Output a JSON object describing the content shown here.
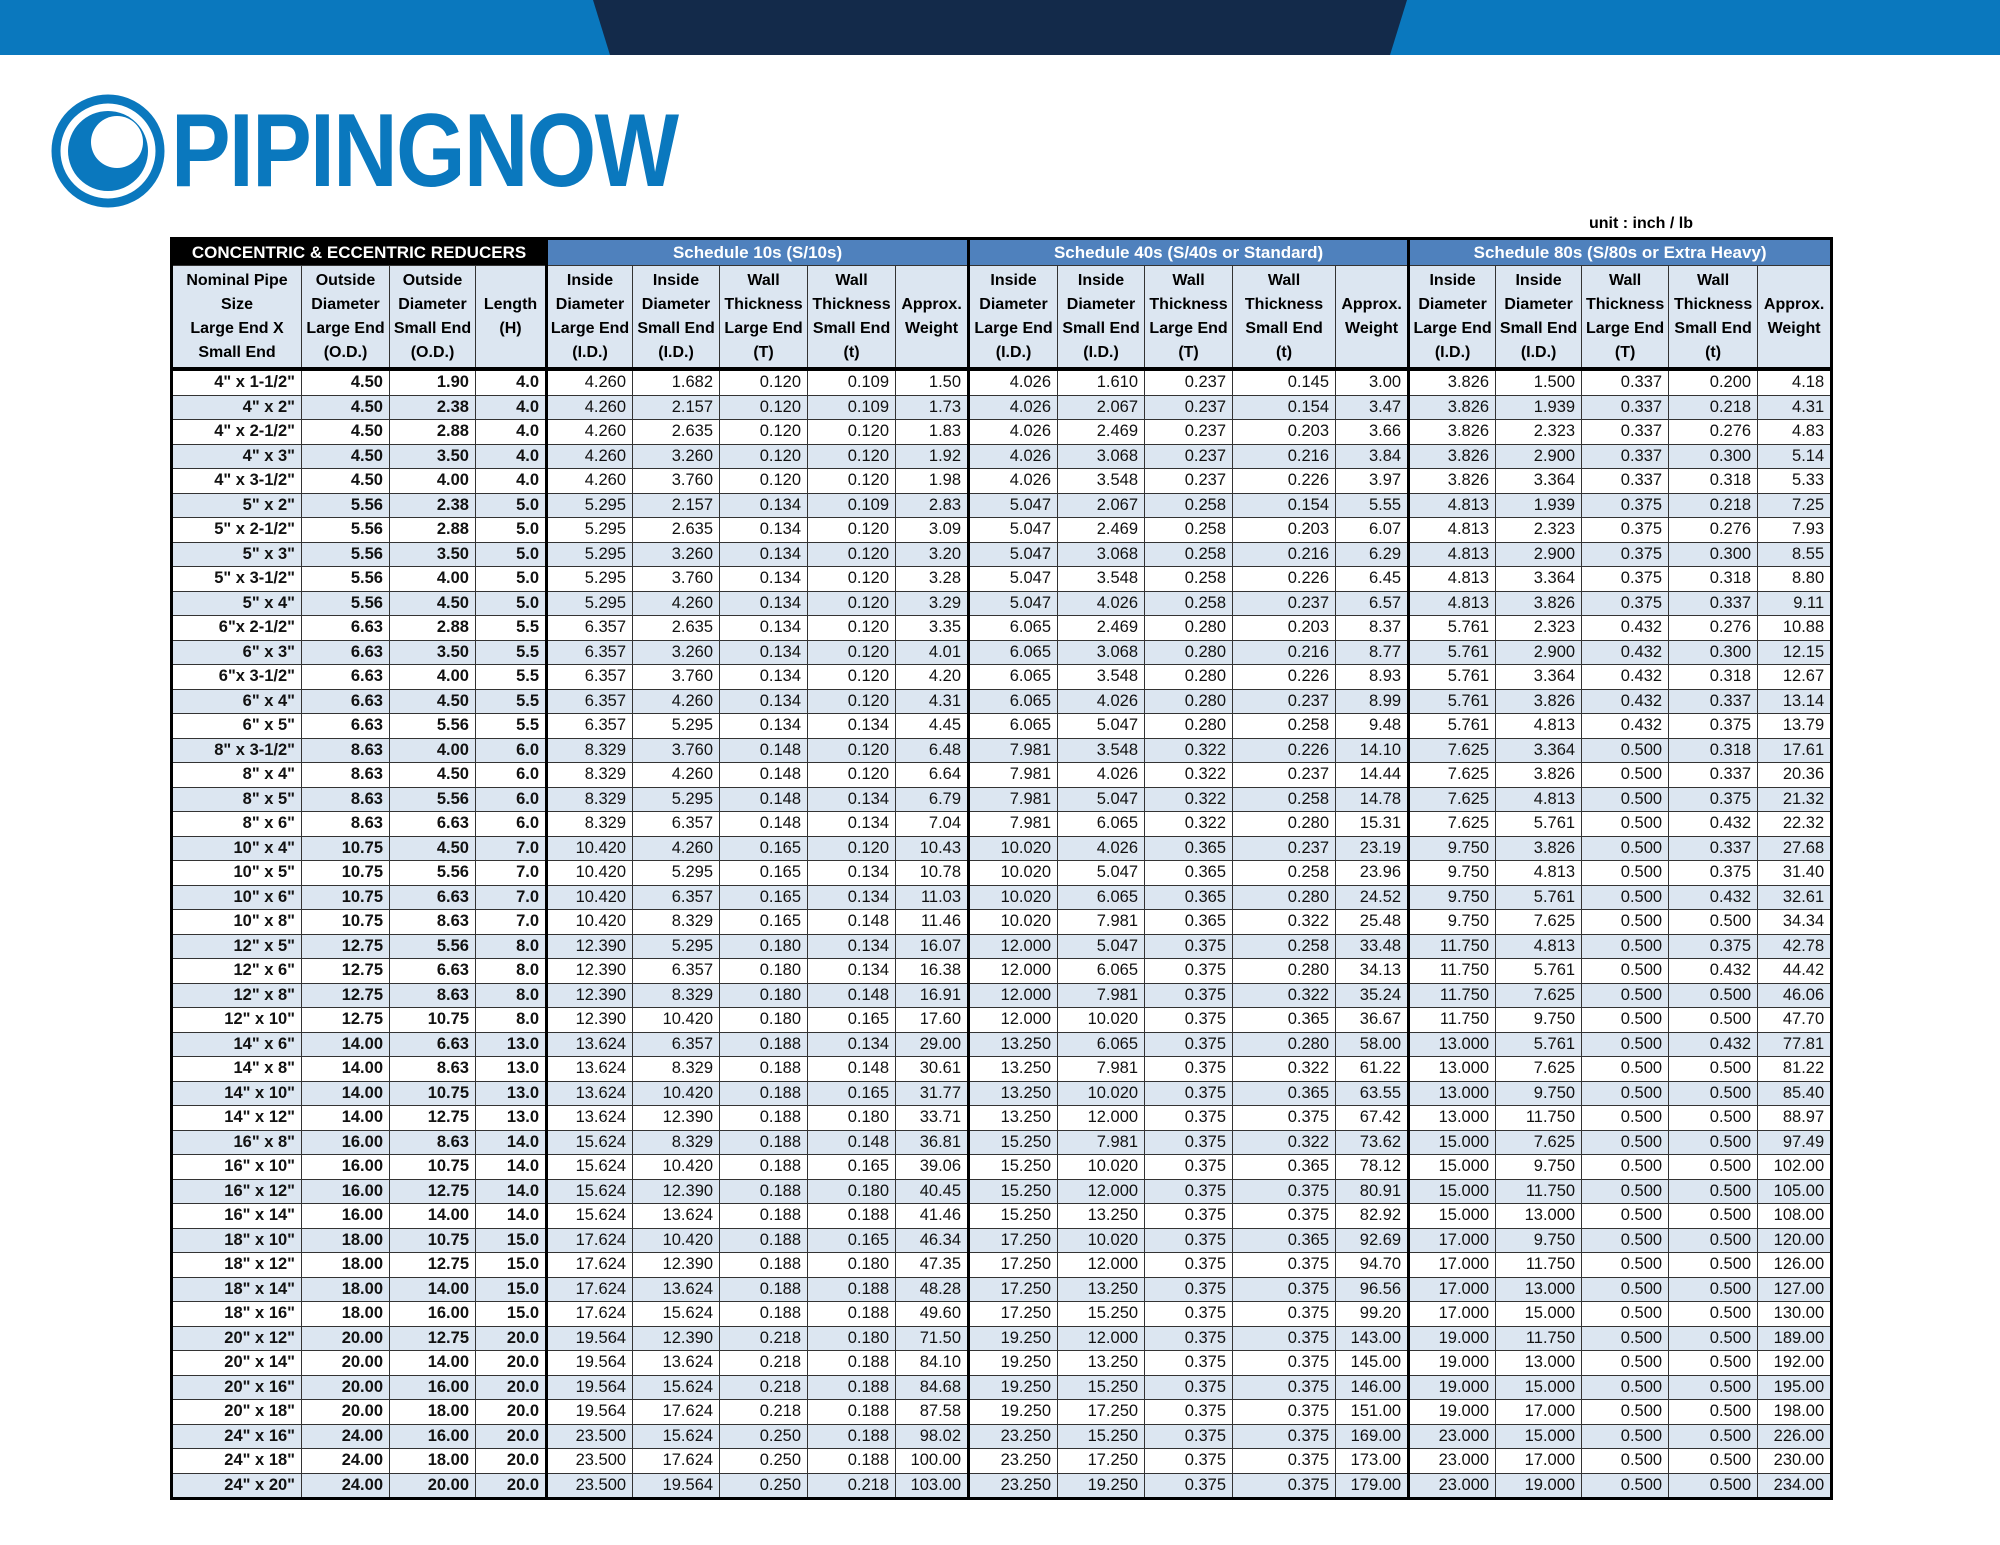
{
  "brand": {
    "name": "PIPINGNOW",
    "colors": {
      "primary": "#0a78be",
      "dark": "#132a4a",
      "header_blue": "#4f81bd",
      "row_alt": "#dce6f1"
    },
    "logo_icon": "crescent-ring-logo"
  },
  "unit_label": "unit : inch / lb",
  "table": {
    "title": "CONCENTRIC & ECCENTRIC REDUCERS",
    "groups": [
      {
        "label": "Schedule 10s    (S/10s)"
      },
      {
        "label": "Schedule 40s    (S/40s or Standard)"
      },
      {
        "label": "Schedule 80s    (S/80s or Extra Heavy)"
      }
    ],
    "columns": [
      [
        "Nominal Pipe",
        "Size",
        "Large End X",
        "Small End"
      ],
      [
        "Outside",
        "Diameter",
        "Large End",
        "(O.D.)"
      ],
      [
        "Outside",
        "Diameter",
        "Small End",
        "(O.D.)"
      ],
      [
        "Length",
        "(H)"
      ],
      [
        "Inside",
        "Diameter",
        "Large End",
        "(I.D.)"
      ],
      [
        "Inside",
        "Diameter",
        "Small End",
        "(I.D.)"
      ],
      [
        "Wall",
        "Thickness",
        "Large End",
        "(T)"
      ],
      [
        "Wall",
        "Thickness",
        "Small End",
        "(t)"
      ],
      [
        "Approx.",
        "Weight"
      ],
      [
        "Inside",
        "Diameter",
        "Large End",
        "(I.D.)"
      ],
      [
        "Inside",
        "Diameter",
        "Small End",
        "(I.D.)"
      ],
      [
        "Wall",
        "Thickness",
        "Large End",
        "(T)"
      ],
      [
        "Wall",
        "Thickness",
        "Small End",
        "(t)"
      ],
      [
        "Approx.",
        "Weight"
      ],
      [
        "Inside",
        "Diameter",
        "Large End",
        "(I.D.)"
      ],
      [
        "Inside",
        "Diameter",
        "Small End",
        "(I.D.)"
      ],
      [
        "Wall",
        "Thickness",
        "Large End",
        "(T)"
      ],
      [
        "Wall",
        "Thickness",
        "Small End",
        "(t)"
      ],
      [
        "Approx.",
        "Weight"
      ]
    ],
    "rows": [
      [
        "4\" x 1-1/2\"",
        "4.50",
        "1.90",
        "4.0",
        "4.260",
        "1.682",
        "0.120",
        "0.109",
        "1.50",
        "4.026",
        "1.610",
        "0.237",
        "0.145",
        "3.00",
        "3.826",
        "1.500",
        "0.337",
        "0.200",
        "4.18"
      ],
      [
        "4\" x 2\"",
        "4.50",
        "2.38",
        "4.0",
        "4.260",
        "2.157",
        "0.120",
        "0.109",
        "1.73",
        "4.026",
        "2.067",
        "0.237",
        "0.154",
        "3.47",
        "3.826",
        "1.939",
        "0.337",
        "0.218",
        "4.31"
      ],
      [
        "4\" x 2-1/2\"",
        "4.50",
        "2.88",
        "4.0",
        "4.260",
        "2.635",
        "0.120",
        "0.120",
        "1.83",
        "4.026",
        "2.469",
        "0.237",
        "0.203",
        "3.66",
        "3.826",
        "2.323",
        "0.337",
        "0.276",
        "4.83"
      ],
      [
        "4\" x 3\"",
        "4.50",
        "3.50",
        "4.0",
        "4.260",
        "3.260",
        "0.120",
        "0.120",
        "1.92",
        "4.026",
        "3.068",
        "0.237",
        "0.216",
        "3.84",
        "3.826",
        "2.900",
        "0.337",
        "0.300",
        "5.14"
      ],
      [
        "4\" x 3-1/2\"",
        "4.50",
        "4.00",
        "4.0",
        "4.260",
        "3.760",
        "0.120",
        "0.120",
        "1.98",
        "4.026",
        "3.548",
        "0.237",
        "0.226",
        "3.97",
        "3.826",
        "3.364",
        "0.337",
        "0.318",
        "5.33"
      ],
      [
        "5\" x 2\"",
        "5.56",
        "2.38",
        "5.0",
        "5.295",
        "2.157",
        "0.134",
        "0.109",
        "2.83",
        "5.047",
        "2.067",
        "0.258",
        "0.154",
        "5.55",
        "4.813",
        "1.939",
        "0.375",
        "0.218",
        "7.25"
      ],
      [
        "5\" x 2-1/2\"",
        "5.56",
        "2.88",
        "5.0",
        "5.295",
        "2.635",
        "0.134",
        "0.120",
        "3.09",
        "5.047",
        "2.469",
        "0.258",
        "0.203",
        "6.07",
        "4.813",
        "2.323",
        "0.375",
        "0.276",
        "7.93"
      ],
      [
        "5\" x 3\"",
        "5.56",
        "3.50",
        "5.0",
        "5.295",
        "3.260",
        "0.134",
        "0.120",
        "3.20",
        "5.047",
        "3.068",
        "0.258",
        "0.216",
        "6.29",
        "4.813",
        "2.900",
        "0.375",
        "0.300",
        "8.55"
      ],
      [
        "5\" x 3-1/2\"",
        "5.56",
        "4.00",
        "5.0",
        "5.295",
        "3.760",
        "0.134",
        "0.120",
        "3.28",
        "5.047",
        "3.548",
        "0.258",
        "0.226",
        "6.45",
        "4.813",
        "3.364",
        "0.375",
        "0.318",
        "8.80"
      ],
      [
        "5\" x 4\"",
        "5.56",
        "4.50",
        "5.0",
        "5.295",
        "4.260",
        "0.134",
        "0.120",
        "3.29",
        "5.047",
        "4.026",
        "0.258",
        "0.237",
        "6.57",
        "4.813",
        "3.826",
        "0.375",
        "0.337",
        "9.11"
      ],
      [
        "6\"x 2-1/2\"",
        "6.63",
        "2.88",
        "5.5",
        "6.357",
        "2.635",
        "0.134",
        "0.120",
        "3.35",
        "6.065",
        "2.469",
        "0.280",
        "0.203",
        "8.37",
        "5.761",
        "2.323",
        "0.432",
        "0.276",
        "10.88"
      ],
      [
        "6\" x 3\"",
        "6.63",
        "3.50",
        "5.5",
        "6.357",
        "3.260",
        "0.134",
        "0.120",
        "4.01",
        "6.065",
        "3.068",
        "0.280",
        "0.216",
        "8.77",
        "5.761",
        "2.900",
        "0.432",
        "0.300",
        "12.15"
      ],
      [
        "6\"x 3-1/2\"",
        "6.63",
        "4.00",
        "5.5",
        "6.357",
        "3.760",
        "0.134",
        "0.120",
        "4.20",
        "6.065",
        "3.548",
        "0.280",
        "0.226",
        "8.93",
        "5.761",
        "3.364",
        "0.432",
        "0.318",
        "12.67"
      ],
      [
        "6\" x 4\"",
        "6.63",
        "4.50",
        "5.5",
        "6.357",
        "4.260",
        "0.134",
        "0.120",
        "4.31",
        "6.065",
        "4.026",
        "0.280",
        "0.237",
        "8.99",
        "5.761",
        "3.826",
        "0.432",
        "0.337",
        "13.14"
      ],
      [
        "6\" x 5\"",
        "6.63",
        "5.56",
        "5.5",
        "6.357",
        "5.295",
        "0.134",
        "0.134",
        "4.45",
        "6.065",
        "5.047",
        "0.280",
        "0.258",
        "9.48",
        "5.761",
        "4.813",
        "0.432",
        "0.375",
        "13.79"
      ],
      [
        "8\" x 3-1/2\"",
        "8.63",
        "4.00",
        "6.0",
        "8.329",
        "3.760",
        "0.148",
        "0.120",
        "6.48",
        "7.981",
        "3.548",
        "0.322",
        "0.226",
        "14.10",
        "7.625",
        "3.364",
        "0.500",
        "0.318",
        "17.61"
      ],
      [
        "8\" x 4\"",
        "8.63",
        "4.50",
        "6.0",
        "8.329",
        "4.260",
        "0.148",
        "0.120",
        "6.64",
        "7.981",
        "4.026",
        "0.322",
        "0.237",
        "14.44",
        "7.625",
        "3.826",
        "0.500",
        "0.337",
        "20.36"
      ],
      [
        "8\" x 5\"",
        "8.63",
        "5.56",
        "6.0",
        "8.329",
        "5.295",
        "0.148",
        "0.134",
        "6.79",
        "7.981",
        "5.047",
        "0.322",
        "0.258",
        "14.78",
        "7.625",
        "4.813",
        "0.500",
        "0.375",
        "21.32"
      ],
      [
        "8\" x 6\"",
        "8.63",
        "6.63",
        "6.0",
        "8.329",
        "6.357",
        "0.148",
        "0.134",
        "7.04",
        "7.981",
        "6.065",
        "0.322",
        "0.280",
        "15.31",
        "7.625",
        "5.761",
        "0.500",
        "0.432",
        "22.32"
      ],
      [
        "10\" x 4\"",
        "10.75",
        "4.50",
        "7.0",
        "10.420",
        "4.260",
        "0.165",
        "0.120",
        "10.43",
        "10.020",
        "4.026",
        "0.365",
        "0.237",
        "23.19",
        "9.750",
        "3.826",
        "0.500",
        "0.337",
        "27.68"
      ],
      [
        "10\" x 5\"",
        "10.75",
        "5.56",
        "7.0",
        "10.420",
        "5.295",
        "0.165",
        "0.134",
        "10.78",
        "10.020",
        "5.047",
        "0.365",
        "0.258",
        "23.96",
        "9.750",
        "4.813",
        "0.500",
        "0.375",
        "31.40"
      ],
      [
        "10\" x 6\"",
        "10.75",
        "6.63",
        "7.0",
        "10.420",
        "6.357",
        "0.165",
        "0.134",
        "11.03",
        "10.020",
        "6.065",
        "0.365",
        "0.280",
        "24.52",
        "9.750",
        "5.761",
        "0.500",
        "0.432",
        "32.61"
      ],
      [
        "10\" x 8\"",
        "10.75",
        "8.63",
        "7.0",
        "10.420",
        "8.329",
        "0.165",
        "0.148",
        "11.46",
        "10.020",
        "7.981",
        "0.365",
        "0.322",
        "25.48",
        "9.750",
        "7.625",
        "0.500",
        "0.500",
        "34.34"
      ],
      [
        "12\" x 5\"",
        "12.75",
        "5.56",
        "8.0",
        "12.390",
        "5.295",
        "0.180",
        "0.134",
        "16.07",
        "12.000",
        "5.047",
        "0.375",
        "0.258",
        "33.48",
        "11.750",
        "4.813",
        "0.500",
        "0.375",
        "42.78"
      ],
      [
        "12\" x 6\"",
        "12.75",
        "6.63",
        "8.0",
        "12.390",
        "6.357",
        "0.180",
        "0.134",
        "16.38",
        "12.000",
        "6.065",
        "0.375",
        "0.280",
        "34.13",
        "11.750",
        "5.761",
        "0.500",
        "0.432",
        "44.42"
      ],
      [
        "12\" x 8\"",
        "12.75",
        "8.63",
        "8.0",
        "12.390",
        "8.329",
        "0.180",
        "0.148",
        "16.91",
        "12.000",
        "7.981",
        "0.375",
        "0.322",
        "35.24",
        "11.750",
        "7.625",
        "0.500",
        "0.500",
        "46.06"
      ],
      [
        "12\" x 10\"",
        "12.75",
        "10.75",
        "8.0",
        "12.390",
        "10.420",
        "0.180",
        "0.165",
        "17.60",
        "12.000",
        "10.020",
        "0.375",
        "0.365",
        "36.67",
        "11.750",
        "9.750",
        "0.500",
        "0.500",
        "47.70"
      ],
      [
        "14\" x 6\"",
        "14.00",
        "6.63",
        "13.0",
        "13.624",
        "6.357",
        "0.188",
        "0.134",
        "29.00",
        "13.250",
        "6.065",
        "0.375",
        "0.280",
        "58.00",
        "13.000",
        "5.761",
        "0.500",
        "0.432",
        "77.81"
      ],
      [
        "14\" x 8\"",
        "14.00",
        "8.63",
        "13.0",
        "13.624",
        "8.329",
        "0.188",
        "0.148",
        "30.61",
        "13.250",
        "7.981",
        "0.375",
        "0.322",
        "61.22",
        "13.000",
        "7.625",
        "0.500",
        "0.500",
        "81.22"
      ],
      [
        "14\" x 10\"",
        "14.00",
        "10.75",
        "13.0",
        "13.624",
        "10.420",
        "0.188",
        "0.165",
        "31.77",
        "13.250",
        "10.020",
        "0.375",
        "0.365",
        "63.55",
        "13.000",
        "9.750",
        "0.500",
        "0.500",
        "85.40"
      ],
      [
        "14\" x 12\"",
        "14.00",
        "12.75",
        "13.0",
        "13.624",
        "12.390",
        "0.188",
        "0.180",
        "33.71",
        "13.250",
        "12.000",
        "0.375",
        "0.375",
        "67.42",
        "13.000",
        "11.750",
        "0.500",
        "0.500",
        "88.97"
      ],
      [
        "16\" x 8\"",
        "16.00",
        "8.63",
        "14.0",
        "15.624",
        "8.329",
        "0.188",
        "0.148",
        "36.81",
        "15.250",
        "7.981",
        "0.375",
        "0.322",
        "73.62",
        "15.000",
        "7.625",
        "0.500",
        "0.500",
        "97.49"
      ],
      [
        "16\" x 10\"",
        "16.00",
        "10.75",
        "14.0",
        "15.624",
        "10.420",
        "0.188",
        "0.165",
        "39.06",
        "15.250",
        "10.020",
        "0.375",
        "0.365",
        "78.12",
        "15.000",
        "9.750",
        "0.500",
        "0.500",
        "102.00"
      ],
      [
        "16\" x 12\"",
        "16.00",
        "12.75",
        "14.0",
        "15.624",
        "12.390",
        "0.188",
        "0.180",
        "40.45",
        "15.250",
        "12.000",
        "0.375",
        "0.375",
        "80.91",
        "15.000",
        "11.750",
        "0.500",
        "0.500",
        "105.00"
      ],
      [
        "16\" x 14\"",
        "16.00",
        "14.00",
        "14.0",
        "15.624",
        "13.624",
        "0.188",
        "0.188",
        "41.46",
        "15.250",
        "13.250",
        "0.375",
        "0.375",
        "82.92",
        "15.000",
        "13.000",
        "0.500",
        "0.500",
        "108.00"
      ],
      [
        "18\" x 10\"",
        "18.00",
        "10.75",
        "15.0",
        "17.624",
        "10.420",
        "0.188",
        "0.165",
        "46.34",
        "17.250",
        "10.020",
        "0.375",
        "0.365",
        "92.69",
        "17.000",
        "9.750",
        "0.500",
        "0.500",
        "120.00"
      ],
      [
        "18\" x 12\"",
        "18.00",
        "12.75",
        "15.0",
        "17.624",
        "12.390",
        "0.188",
        "0.180",
        "47.35",
        "17.250",
        "12.000",
        "0.375",
        "0.375",
        "94.70",
        "17.000",
        "11.750",
        "0.500",
        "0.500",
        "126.00"
      ],
      [
        "18\" x 14\"",
        "18.00",
        "14.00",
        "15.0",
        "17.624",
        "13.624",
        "0.188",
        "0.188",
        "48.28",
        "17.250",
        "13.250",
        "0.375",
        "0.375",
        "96.56",
        "17.000",
        "13.000",
        "0.500",
        "0.500",
        "127.00"
      ],
      [
        "18\" x 16\"",
        "18.00",
        "16.00",
        "15.0",
        "17.624",
        "15.624",
        "0.188",
        "0.188",
        "49.60",
        "17.250",
        "15.250",
        "0.375",
        "0.375",
        "99.20",
        "17.000",
        "15.000",
        "0.500",
        "0.500",
        "130.00"
      ],
      [
        "20\" x 12\"",
        "20.00",
        "12.75",
        "20.0",
        "19.564",
        "12.390",
        "0.218",
        "0.180",
        "71.50",
        "19.250",
        "12.000",
        "0.375",
        "0.375",
        "143.00",
        "19.000",
        "11.750",
        "0.500",
        "0.500",
        "189.00"
      ],
      [
        "20\" x 14\"",
        "20.00",
        "14.00",
        "20.0",
        "19.564",
        "13.624",
        "0.218",
        "0.188",
        "84.10",
        "19.250",
        "13.250",
        "0.375",
        "0.375",
        "145.00",
        "19.000",
        "13.000",
        "0.500",
        "0.500",
        "192.00"
      ],
      [
        "20\" x 16\"",
        "20.00",
        "16.00",
        "20.0",
        "19.564",
        "15.624",
        "0.218",
        "0.188",
        "84.68",
        "19.250",
        "15.250",
        "0.375",
        "0.375",
        "146.00",
        "19.000",
        "15.000",
        "0.500",
        "0.500",
        "195.00"
      ],
      [
        "20\" x 18\"",
        "20.00",
        "18.00",
        "20.0",
        "19.564",
        "17.624",
        "0.218",
        "0.188",
        "87.58",
        "19.250",
        "17.250",
        "0.375",
        "0.375",
        "151.00",
        "19.000",
        "17.000",
        "0.500",
        "0.500",
        "198.00"
      ],
      [
        "24\" x 16\"",
        "24.00",
        "16.00",
        "20.0",
        "23.500",
        "15.624",
        "0.250",
        "0.188",
        "98.02",
        "23.250",
        "15.250",
        "0.375",
        "0.375",
        "169.00",
        "23.000",
        "15.000",
        "0.500",
        "0.500",
        "226.00"
      ],
      [
        "24\" x 18\"",
        "24.00",
        "18.00",
        "20.0",
        "23.500",
        "17.624",
        "0.250",
        "0.188",
        "100.00",
        "23.250",
        "17.250",
        "0.375",
        "0.375",
        "173.00",
        "23.000",
        "17.000",
        "0.500",
        "0.500",
        "230.00"
      ],
      [
        "24\" x 20\"",
        "24.00",
        "20.00",
        "20.0",
        "23.500",
        "19.564",
        "0.250",
        "0.218",
        "103.00",
        "23.250",
        "19.250",
        "0.375",
        "0.375",
        "179.00",
        "23.000",
        "19.000",
        "0.500",
        "0.500",
        "234.00"
      ]
    ]
  }
}
